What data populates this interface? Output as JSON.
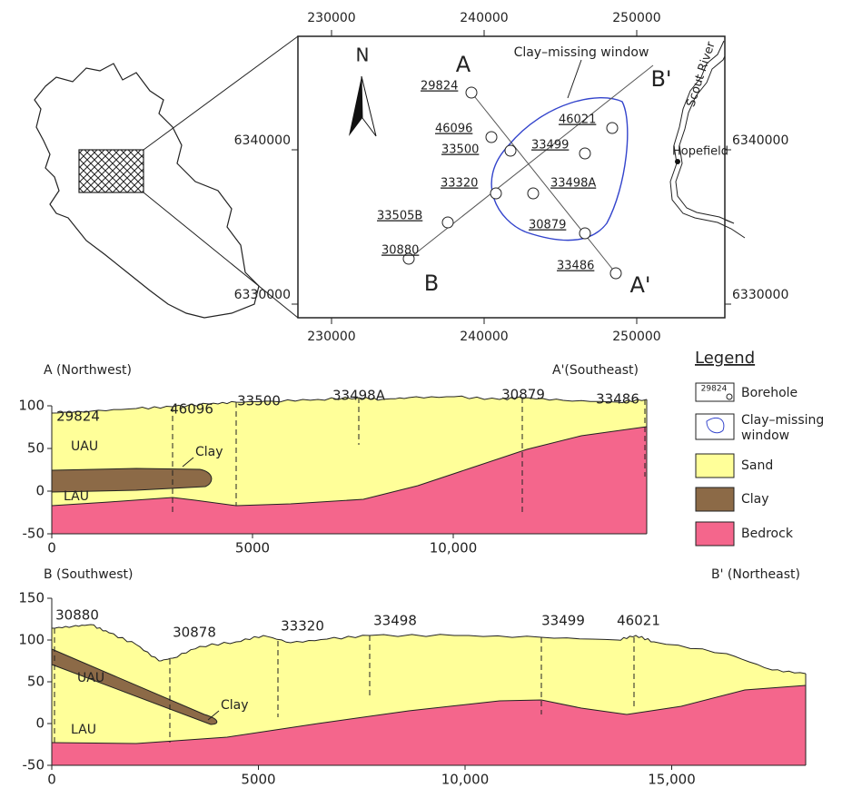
{
  "map": {
    "x_labels_top": [
      "230000",
      "240000",
      "250000"
    ],
    "x_labels_bottom": [
      "230000",
      "240000",
      "250000"
    ],
    "y_labels_left": [
      "6340000",
      "6330000"
    ],
    "y_labels_right": [
      "6340000",
      "6330000"
    ],
    "north": "N",
    "window_label": "Clay–missing window",
    "river": "Scout River",
    "town": "Hopefield",
    "line_a": "A",
    "line_a_end": "A'",
    "line_b": "B",
    "line_b_end": "B'",
    "boreholes": [
      "29824",
      "46096",
      "33500",
      "33320",
      "33505B",
      "30880",
      "46021",
      "33499",
      "33498A",
      "30879",
      "33486"
    ]
  },
  "section_a": {
    "title_left": "A (Northwest)",
    "title_right": "A'(Southeast)",
    "yticks": [
      100,
      50,
      0,
      -50
    ],
    "xticks": [
      0,
      5000,
      {
        "value": 10000,
        "label": "10,000"
      }
    ],
    "boreholes": [
      "29824",
      "46096",
      "33500",
      "33498A",
      "30879",
      "33486"
    ],
    "upper": "UAU",
    "lower": "LAU",
    "clay": "Clay"
  },
  "section_b": {
    "title_left": "B (Southwest)",
    "title_right": "B' (Northeast)",
    "yticks": [
      150,
      100,
      50,
      0,
      -50
    ],
    "xticks": [
      0,
      5000,
      {
        "value": 10000,
        "label": "10,000"
      },
      {
        "value": 15000,
        "label": "15,000"
      }
    ],
    "boreholes": [
      "30880",
      "30878",
      "33320",
      "33498",
      "33499",
      "46021"
    ],
    "upper": "UAU",
    "lower": "LAU",
    "clay": "Clay"
  },
  "legend": {
    "title": "Legend",
    "borehole_icon": "29824",
    "borehole": "Borehole",
    "window_1": "Clay–missing",
    "window_2": "window",
    "sand": "Sand",
    "clay": "Clay",
    "bedrock": "Bedrock"
  }
}
